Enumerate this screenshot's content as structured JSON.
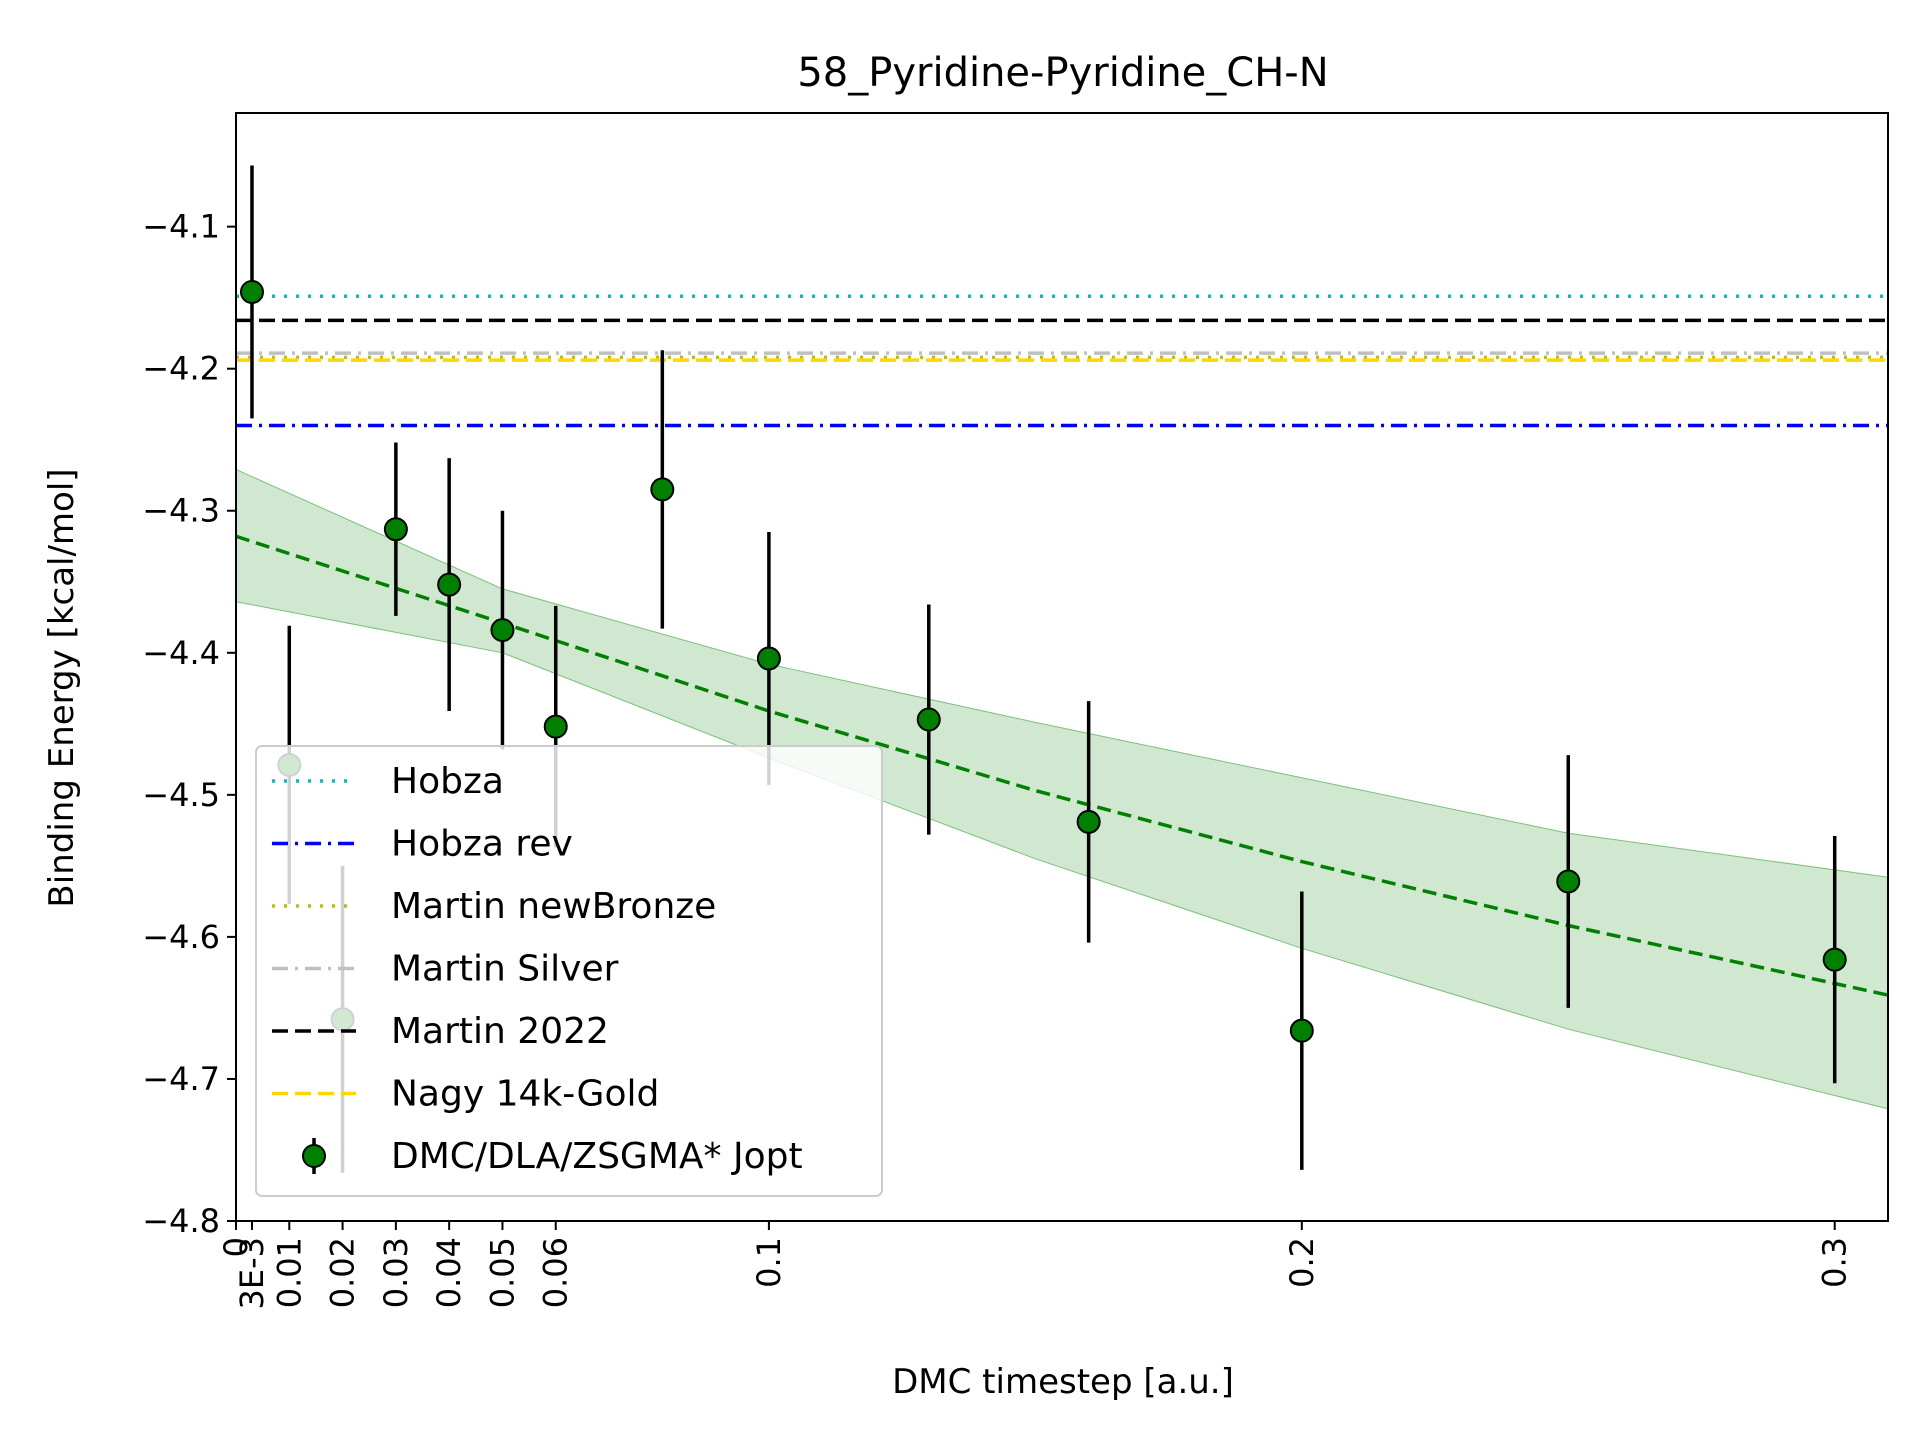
{
  "chart_data": {
    "type": "scatter",
    "title": "58_Pyridine-Pyridine_CH-N",
    "xlabel": "DMC timestep [a.u.]",
    "ylabel": "Binding Energy [kcal/mol]",
    "xlim": [
      0,
      0.31
    ],
    "ylim": [
      -4.8,
      -4.02
    ],
    "grid": false,
    "legend_position": "lower-left",
    "x_ticks": [
      {
        "value": 0,
        "label": "0"
      },
      {
        "value": 0.003,
        "label": "3E-3"
      },
      {
        "value": 0.01,
        "label": "0.01"
      },
      {
        "value": 0.02,
        "label": "0.02"
      },
      {
        "value": 0.03,
        "label": "0.03"
      },
      {
        "value": 0.04,
        "label": "0.04"
      },
      {
        "value": 0.05,
        "label": "0.05"
      },
      {
        "value": 0.06,
        "label": "0.06"
      },
      {
        "value": 0.1,
        "label": "0.1"
      },
      {
        "value": 0.2,
        "label": "0.2"
      },
      {
        "value": 0.3,
        "label": "0.3"
      }
    ],
    "y_ticks": [
      {
        "value": -4.1,
        "label": "−4.1"
      },
      {
        "value": -4.2,
        "label": "−4.2"
      },
      {
        "value": -4.3,
        "label": "−4.3"
      },
      {
        "value": -4.4,
        "label": "−4.4"
      },
      {
        "value": -4.5,
        "label": "−4.5"
      },
      {
        "value": -4.6,
        "label": "−4.6"
      },
      {
        "value": -4.7,
        "label": "−4.7"
      },
      {
        "value": -4.8,
        "label": "−4.8"
      }
    ],
    "reference_lines": [
      {
        "name": "Hobza",
        "y": -4.149,
        "color": "#00bfbf",
        "dash": "dotted"
      },
      {
        "name": "Hobza rev",
        "y": -4.24,
        "color": "#0000ff",
        "dash": "dashdot"
      },
      {
        "name": "Martin newBronze",
        "y": -4.192,
        "color": "#bfbf00",
        "dash": "dotted"
      },
      {
        "name": "Martin Silver",
        "y": -4.189,
        "color": "#c0c0c0",
        "dash": "dashdot"
      },
      {
        "name": "Martin 2022",
        "y": -4.166,
        "color": "#000000",
        "dash": "dashed"
      },
      {
        "name": "Nagy 14k-Gold",
        "y": -4.194,
        "color": "#ffd700",
        "dash": "dashed"
      }
    ],
    "series": [
      {
        "name": "DMC/DLA/ZSGMA* Jopt",
        "color": "#008000",
        "points": [
          {
            "x": 0.003,
            "y": -4.146,
            "err": 0.089
          },
          {
            "x": 0.01,
            "y": -4.479,
            "err": 0.098
          },
          {
            "x": 0.02,
            "y": -4.658,
            "err": 0.108
          },
          {
            "x": 0.03,
            "y": -4.313,
            "err": 0.061
          },
          {
            "x": 0.04,
            "y": -4.352,
            "err": 0.089
          },
          {
            "x": 0.05,
            "y": -4.384,
            "err": 0.084
          },
          {
            "x": 0.06,
            "y": -4.452,
            "err": 0.085
          },
          {
            "x": 0.08,
            "y": -4.285,
            "err": 0.098
          },
          {
            "x": 0.1,
            "y": -4.404,
            "err": 0.089
          },
          {
            "x": 0.13,
            "y": -4.447,
            "err": 0.081
          },
          {
            "x": 0.16,
            "y": -4.519,
            "err": 0.085
          },
          {
            "x": 0.2,
            "y": -4.666,
            "err": 0.098
          },
          {
            "x": 0.25,
            "y": -4.561,
            "err": 0.089
          },
          {
            "x": 0.3,
            "y": -4.616,
            "err": 0.087
          }
        ]
      }
    ],
    "fit": {
      "color": "#008000",
      "band_color": "#a8d5a8",
      "x": [
        0,
        0.05,
        0.1,
        0.15,
        0.2,
        0.25,
        0.31
      ],
      "y": [
        -4.318,
        -4.379,
        -4.441,
        -4.497,
        -4.547,
        -4.592,
        -4.641
      ],
      "lower": [
        -4.364,
        -4.4,
        -4.474,
        -4.545,
        -4.608,
        -4.665,
        -4.721
      ],
      "upper": [
        -4.271,
        -4.355,
        -4.408,
        -4.449,
        -4.488,
        -4.527,
        -4.558
      ]
    }
  }
}
